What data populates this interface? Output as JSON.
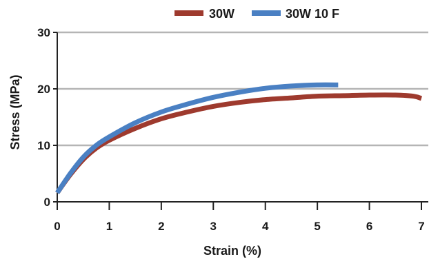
{
  "chart_data": {
    "type": "line",
    "title": "",
    "xlabel": "Strain (%)",
    "ylabel": "Stress (MPa)",
    "xlim": [
      0,
      7
    ],
    "ylim": [
      0,
      30
    ],
    "xticks": [
      0,
      1,
      2,
      3,
      4,
      5,
      6,
      7
    ],
    "yticks": [
      0,
      10,
      20,
      30
    ],
    "grid": "horizontal",
    "legend_position": "top",
    "series": [
      {
        "name": "30W",
        "color": "#9e3a2e",
        "x": [
          0,
          0.25,
          0.5,
          0.75,
          1.0,
          1.5,
          2.0,
          2.5,
          3.0,
          3.5,
          4.0,
          4.5,
          5.0,
          5.5,
          6.0,
          6.5,
          6.85,
          7.0
        ],
        "y": [
          1.6,
          4.8,
          7.5,
          9.5,
          10.9,
          13.0,
          14.7,
          15.9,
          16.9,
          17.6,
          18.1,
          18.4,
          18.7,
          18.8,
          18.9,
          18.9,
          18.7,
          18.3
        ]
      },
      {
        "name": "30W 10 F",
        "color": "#4a80c3",
        "x": [
          0,
          0.25,
          0.5,
          0.75,
          1.0,
          1.5,
          2.0,
          2.5,
          3.0,
          3.5,
          4.0,
          4.5,
          5.0,
          5.4
        ],
        "y": [
          1.6,
          5.0,
          7.9,
          10.0,
          11.5,
          14.0,
          15.9,
          17.3,
          18.5,
          19.4,
          20.1,
          20.5,
          20.7,
          20.7
        ]
      }
    ]
  }
}
